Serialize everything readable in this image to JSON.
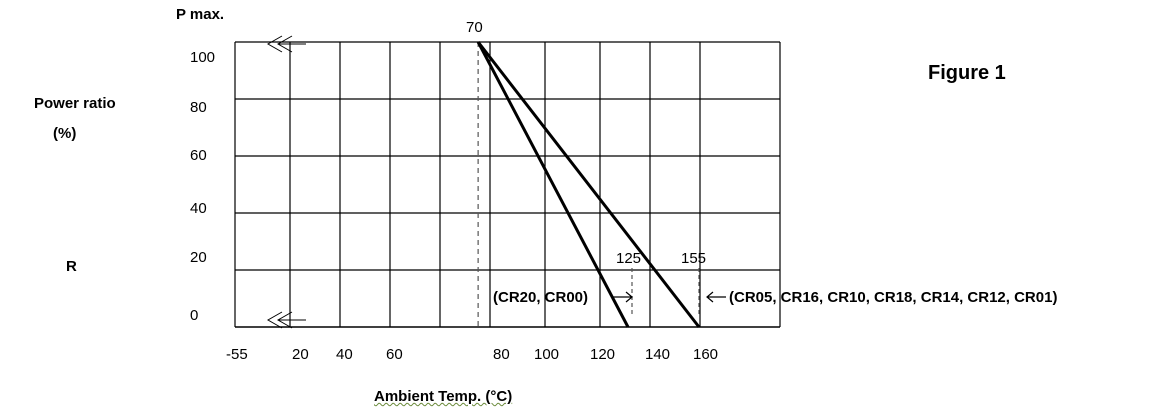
{
  "figure_label": "Figure 1",
  "chart_data": {
    "type": "line",
    "title": "",
    "ylabel": "Power ratio",
    "ylabel_unit": "(%)",
    "ylabel_extra": "R",
    "ylabel_top": "P max.",
    "xlabel": "Ambient Temp. (°C)",
    "x_tick_labels": [
      "-55",
      "20",
      "40",
      "60",
      "80",
      "100",
      "120",
      "140",
      "160"
    ],
    "y_tick_labels": [
      "0",
      "20",
      "40",
      "60",
      "80",
      "100"
    ],
    "ylim": [
      0,
      100
    ],
    "grid": true,
    "x_axis_break": true,
    "series": [
      {
        "name": "(CR20, CR00)",
        "x": [
          70,
          125
        ],
        "y": [
          100,
          0
        ]
      },
      {
        "name": "(CR05, CR16, CR10, CR18, CR14, CR12, CR01)",
        "x": [
          70,
          155
        ],
        "y": [
          100,
          0
        ]
      }
    ],
    "annotations": [
      "70",
      "125",
      "155"
    ],
    "reference_lines_x": [
      70,
      125,
      155
    ]
  }
}
